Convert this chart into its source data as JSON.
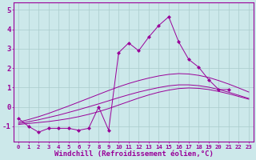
{
  "background_color": "#cce8ea",
  "grid_color": "#aacccc",
  "line_color": "#990099",
  "markersize": 2.5,
  "xlabel": "Windchill (Refroidissement éolien,°C)",
  "xlabel_fontsize": 6.5,
  "ytick_fontsize": 6.5,
  "xtick_fontsize": 5.2,
  "ylim": [
    -1.8,
    5.4
  ],
  "xlim": [
    -0.5,
    23.5
  ],
  "x": [
    0,
    1,
    2,
    3,
    4,
    5,
    6,
    7,
    8,
    9,
    10,
    11,
    12,
    13,
    14,
    15,
    16,
    17,
    18,
    19,
    20,
    21,
    22,
    23
  ],
  "line1": [
    -0.6,
    -1.0,
    -1.3,
    -1.1,
    -1.1,
    -1.1,
    -1.2,
    -1.1,
    0.0,
    -1.2,
    2.8,
    3.3,
    2.9,
    3.6,
    4.2,
    4.65,
    3.35,
    2.45,
    2.05,
    1.4,
    0.9,
    0.9,
    null,
    null
  ],
  "line2": [
    -0.9,
    -0.85,
    -0.8,
    -0.75,
    -0.68,
    -0.6,
    -0.5,
    -0.38,
    -0.24,
    -0.08,
    0.1,
    0.28,
    0.46,
    0.62,
    0.76,
    0.87,
    0.95,
    0.98,
    0.96,
    0.9,
    0.8,
    0.68,
    0.54,
    0.4
  ],
  "line3": [
    -0.85,
    -0.76,
    -0.66,
    -0.54,
    -0.42,
    -0.28,
    -0.14,
    0.01,
    0.16,
    0.32,
    0.48,
    0.63,
    0.77,
    0.89,
    1.0,
    1.09,
    1.14,
    1.14,
    1.1,
    1.02,
    0.9,
    0.76,
    0.6,
    0.44
  ],
  "line4": [
    -0.78,
    -0.65,
    -0.5,
    -0.33,
    -0.14,
    0.05,
    0.25,
    0.45,
    0.65,
    0.85,
    1.04,
    1.21,
    1.36,
    1.49,
    1.6,
    1.68,
    1.72,
    1.7,
    1.63,
    1.52,
    1.36,
    1.18,
    0.98,
    0.77
  ],
  "yticks": [
    -1,
    0,
    1,
    2,
    3,
    4,
    5
  ],
  "xticks": [
    0,
    1,
    2,
    3,
    4,
    5,
    6,
    7,
    8,
    9,
    10,
    11,
    12,
    13,
    14,
    15,
    16,
    17,
    18,
    19,
    20,
    21,
    22,
    23
  ]
}
